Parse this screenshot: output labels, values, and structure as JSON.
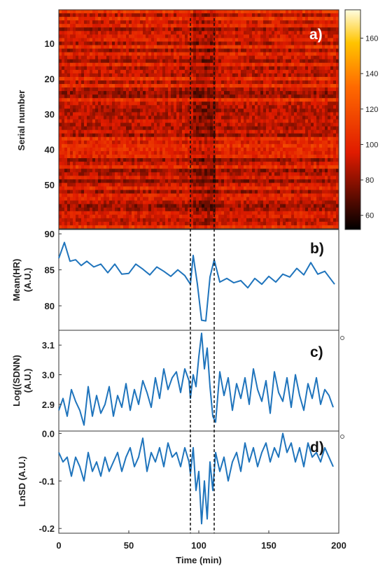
{
  "colors": {
    "series": "#1f74bc",
    "event_line": "#111111",
    "heatmap_low": "#000000",
    "heatmap_mid": "#e01b00",
    "heatmap_high": "#fffde0"
  },
  "chart_data": [
    {
      "panel": "a)",
      "type": "heatmap",
      "ylabel": "Serial number",
      "y_ticks": [
        10,
        20,
        30,
        40,
        50
      ],
      "rows": 62,
      "x_range": [
        0,
        200
      ],
      "colorbar": {
        "ticks": [
          60,
          80,
          100,
          120,
          140,
          160
        ],
        "range": [
          52,
          176
        ]
      },
      "event_lines_x": [
        94,
        111
      ]
    },
    {
      "panel": "b)",
      "type": "line",
      "ylabel_line1": "Mean(HR)",
      "ylabel_line2": "(A.U.)",
      "y_ticks": [
        80,
        85,
        90
      ],
      "ylim": [
        76.6,
        90.6
      ],
      "xlim": [
        0,
        200
      ],
      "x": [
        0,
        4,
        8,
        12,
        16,
        20,
        25,
        30,
        35,
        40,
        45,
        50,
        55,
        60,
        65,
        70,
        75,
        80,
        85,
        90,
        94,
        96,
        99,
        102,
        105,
        108,
        111,
        115,
        120,
        125,
        130,
        135,
        140,
        145,
        150,
        155,
        160,
        165,
        170,
        175,
        180,
        185,
        190,
        197
      ],
      "values": [
        86.6,
        88.8,
        86.2,
        86.4,
        85.6,
        86.2,
        85.4,
        85.8,
        84.6,
        85.8,
        84.4,
        84.5,
        85.8,
        85.1,
        84.3,
        85.4,
        84.8,
        84.1,
        85.0,
        84.2,
        83.0,
        87.0,
        83.0,
        78.0,
        77.9,
        84.0,
        86.4,
        83.3,
        83.8,
        83.2,
        83.5,
        82.5,
        83.8,
        83.0,
        84.1,
        83.3,
        84.4,
        84.0,
        85.2,
        84.3,
        86.0,
        84.4,
        84.8,
        83.0
      ]
    },
    {
      "panel": "c)",
      "type": "line",
      "ylabel_line1": "Log((SDNN)",
      "ylabel_line2": "(A.U.)",
      "y_ticks": [
        2.9,
        3.0,
        3.1
      ],
      "ylim": [
        2.81,
        3.15
      ],
      "xlim": [
        0,
        200
      ],
      "x": [
        0,
        3,
        6,
        9,
        12,
        15,
        18,
        21,
        24,
        27,
        30,
        33,
        36,
        39,
        42,
        45,
        48,
        51,
        54,
        57,
        60,
        63,
        66,
        69,
        72,
        75,
        78,
        81,
        84,
        87,
        90,
        93,
        94,
        96,
        98,
        100,
        102,
        104,
        106,
        108,
        110,
        112,
        115,
        118,
        121,
        124,
        127,
        130,
        133,
        136,
        139,
        142,
        145,
        148,
        151,
        154,
        157,
        160,
        163,
        166,
        169,
        172,
        175,
        178,
        181,
        184,
        187,
        190,
        193,
        196
      ],
      "values": [
        2.88,
        2.92,
        2.86,
        2.95,
        2.91,
        2.88,
        2.83,
        2.96,
        2.86,
        2.93,
        2.87,
        2.9,
        2.96,
        2.86,
        2.93,
        2.89,
        2.97,
        2.88,
        2.95,
        2.9,
        2.98,
        2.94,
        2.89,
        2.99,
        2.92,
        3.02,
        2.95,
        2.99,
        3.01,
        2.94,
        3.02,
        2.98,
        2.92,
        3.0,
        2.96,
        3.06,
        3.14,
        3.02,
        3.09,
        2.96,
        2.86,
        2.84,
        3.01,
        2.93,
        2.99,
        2.88,
        2.97,
        2.92,
        2.99,
        2.9,
        3.02,
        2.95,
        2.91,
        2.98,
        2.87,
        3.01,
        2.94,
        2.91,
        2.99,
        2.89,
        3.0,
        2.93,
        2.88,
        2.97,
        2.92,
        2.99,
        2.9,
        2.95,
        2.93,
        2.89
      ]
    },
    {
      "panel": "d)",
      "type": "line",
      "ylabel": "LnSD (A.U.)",
      "y_ticks": [
        0.0,
        -0.1,
        -0.2
      ],
      "ylim": [
        -0.21,
        0.005
      ],
      "xlim": [
        0,
        200
      ],
      "x_ticks": [
        0,
        50,
        100,
        150,
        200
      ],
      "xlabel": "Time (min)",
      "x": [
        0,
        3,
        6,
        9,
        12,
        15,
        18,
        21,
        24,
        27,
        30,
        33,
        36,
        39,
        42,
        45,
        48,
        51,
        54,
        57,
        60,
        63,
        66,
        69,
        72,
        75,
        78,
        81,
        84,
        87,
        90,
        93,
        94,
        96,
        98,
        100,
        102,
        104,
        106,
        108,
        110,
        112,
        115,
        118,
        121,
        124,
        127,
        130,
        133,
        136,
        139,
        142,
        145,
        148,
        151,
        154,
        157,
        160,
        163,
        166,
        169,
        172,
        175,
        178,
        181,
        184,
        187,
        190,
        193,
        196
      ],
      "values": [
        -0.04,
        -0.06,
        -0.05,
        -0.09,
        -0.05,
        -0.07,
        -0.1,
        -0.04,
        -0.08,
        -0.06,
        -0.09,
        -0.05,
        -0.08,
        -0.06,
        -0.04,
        -0.08,
        -0.05,
        -0.03,
        -0.07,
        -0.05,
        -0.01,
        -0.08,
        -0.04,
        -0.06,
        -0.03,
        -0.07,
        -0.02,
        -0.05,
        -0.04,
        -0.07,
        -0.03,
        -0.06,
        -0.085,
        -0.03,
        -0.12,
        -0.08,
        -0.19,
        -0.1,
        -0.18,
        -0.06,
        -0.12,
        -0.04,
        -0.08,
        -0.05,
        -0.1,
        -0.06,
        -0.04,
        -0.08,
        -0.02,
        -0.06,
        -0.03,
        -0.07,
        -0.04,
        -0.02,
        -0.06,
        -0.03,
        -0.05,
        0.0,
        -0.04,
        -0.02,
        -0.06,
        -0.03,
        -0.07,
        -0.02,
        -0.05,
        -0.04,
        -0.06,
        -0.03,
        -0.05,
        -0.07
      ]
    }
  ]
}
